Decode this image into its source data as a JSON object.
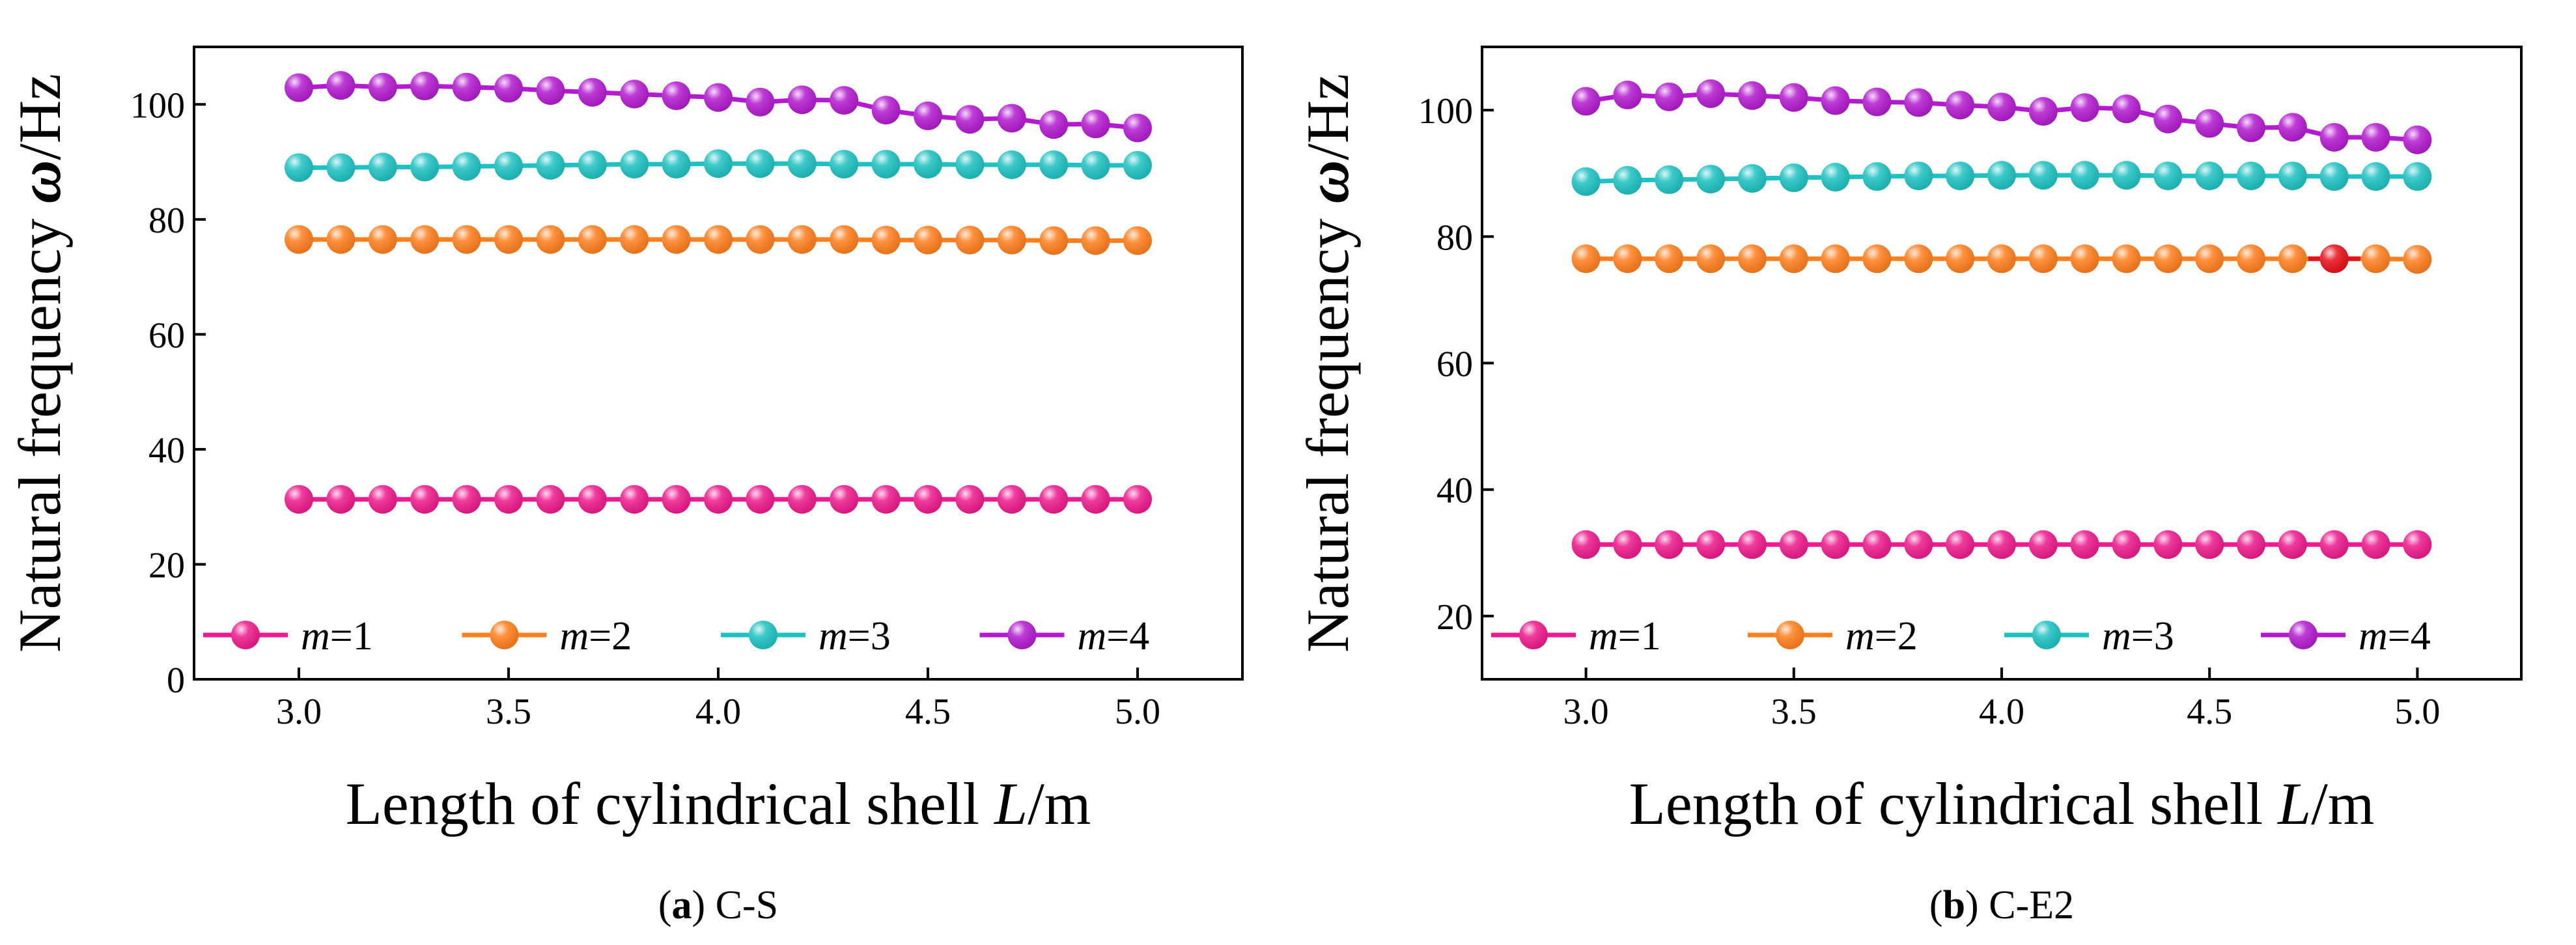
{
  "chart_data": [
    {
      "type": "line",
      "caption_letter": "a",
      "caption_rest": " C-S",
      "xlabel_main": "Length of cylindrical shell ",
      "xlabel_var": "L",
      "xlabel_unit": "/m",
      "ylabel_main": "Natural frequency ",
      "ylabel_var": "ω",
      "ylabel_unit": "/Hz",
      "xlim": [
        2.75,
        5.25
      ],
      "ylim": [
        0,
        110
      ],
      "xticks": [
        3.0,
        3.5,
        4.0,
        4.5,
        5.0
      ],
      "xtick_labels": [
        "3.0",
        "3.5",
        "4.0",
        "4.5",
        "5.0"
      ],
      "yticks": [
        0,
        20,
        40,
        60,
        80,
        100
      ],
      "ytick_labels": [
        "0",
        "20",
        "40",
        "60",
        "80",
        "100"
      ],
      "x": [
        3.0,
        3.1,
        3.2,
        3.3,
        3.4,
        3.5,
        3.6,
        3.7,
        3.8,
        3.9,
        4.0,
        4.1,
        4.2,
        4.3,
        4.4,
        4.5,
        4.6,
        4.7,
        4.8,
        4.9,
        5.0
      ],
      "series": [
        {
          "name": "m=1",
          "color": "#ee1a8e",
          "values": [
            31.3,
            31.3,
            31.3,
            31.3,
            31.3,
            31.3,
            31.3,
            31.3,
            31.3,
            31.3,
            31.3,
            31.3,
            31.3,
            31.3,
            31.3,
            31.3,
            31.3,
            31.3,
            31.3,
            31.3,
            31.3
          ]
        },
        {
          "name": "m=2",
          "color": "#ff7f1e",
          "values": [
            76.5,
            76.5,
            76.5,
            76.5,
            76.5,
            76.5,
            76.5,
            76.5,
            76.5,
            76.5,
            76.5,
            76.5,
            76.5,
            76.5,
            76.4,
            76.4,
            76.4,
            76.4,
            76.3,
            76.3,
            76.3
          ]
        },
        {
          "name": "m=3",
          "color": "#1fc2c2",
          "values": [
            89.0,
            89.0,
            89.1,
            89.1,
            89.2,
            89.3,
            89.4,
            89.5,
            89.6,
            89.6,
            89.7,
            89.7,
            89.7,
            89.6,
            89.6,
            89.6,
            89.5,
            89.5,
            89.5,
            89.4,
            89.4
          ]
        },
        {
          "name": "m=4",
          "color": "#b41bd0",
          "values": [
            102.9,
            103.3,
            103.0,
            103.2,
            103.0,
            102.8,
            102.4,
            102.1,
            101.8,
            101.5,
            101.2,
            100.4,
            100.8,
            100.7,
            99.0,
            98.0,
            97.4,
            97.6,
            96.5,
            96.6,
            95.9
          ]
        }
      ],
      "legend": {
        "prefix": "m",
        "labels": [
          "=1",
          "=2",
          "=3",
          "=4"
        ],
        "location": "lower"
      }
    },
    {
      "type": "line",
      "caption_letter": "b",
      "caption_rest": " C-E2",
      "xlabel_main": "Length of cylindrical shell ",
      "xlabel_var": "L",
      "xlabel_unit": "/m",
      "ylabel_main": "Natural frequency ",
      "ylabel_var": "ω",
      "ylabel_unit": "/Hz",
      "xlim": [
        2.75,
        5.25
      ],
      "ylim": [
        10,
        110
      ],
      "xticks": [
        3.0,
        3.5,
        4.0,
        4.5,
        5.0
      ],
      "xtick_labels": [
        "3.0",
        "3.5",
        "4.0",
        "4.5",
        "5.0"
      ],
      "yticks": [
        20,
        40,
        60,
        80,
        100
      ],
      "ytick_labels": [
        "20",
        "40",
        "60",
        "80",
        "100"
      ],
      "x": [
        3.0,
        3.1,
        3.2,
        3.3,
        3.4,
        3.5,
        3.6,
        3.7,
        3.8,
        3.9,
        4.0,
        4.1,
        4.2,
        4.3,
        4.4,
        4.5,
        4.6,
        4.7,
        4.8,
        4.9,
        5.0
      ],
      "series": [
        {
          "name": "m=1",
          "color": "#ee1a8e",
          "values": [
            31.3,
            31.3,
            31.3,
            31.3,
            31.3,
            31.3,
            31.3,
            31.3,
            31.3,
            31.3,
            31.3,
            31.3,
            31.3,
            31.3,
            31.3,
            31.3,
            31.3,
            31.3,
            31.3,
            31.3,
            31.3
          ]
        },
        {
          "name": "m=2",
          "color": "#ff7f1e",
          "values": [
            76.5,
            76.5,
            76.5,
            76.5,
            76.5,
            76.5,
            76.5,
            76.5,
            76.5,
            76.5,
            76.5,
            76.5,
            76.5,
            76.5,
            76.5,
            76.5,
            76.5,
            76.5,
            76.5,
            76.5,
            76.4
          ],
          "highlight_index": 18,
          "highlight_color": "#e8101a"
        },
        {
          "name": "m=3",
          "color": "#1fc2c2",
          "values": [
            88.7,
            88.9,
            89.0,
            89.1,
            89.2,
            89.3,
            89.4,
            89.5,
            89.6,
            89.6,
            89.7,
            89.7,
            89.7,
            89.7,
            89.6,
            89.6,
            89.6,
            89.6,
            89.5,
            89.5,
            89.5
          ]
        },
        {
          "name": "m=4",
          "color": "#b41bd0",
          "values": [
            101.4,
            102.4,
            102.1,
            102.6,
            102.3,
            102.0,
            101.5,
            101.3,
            101.2,
            100.8,
            100.5,
            99.8,
            100.4,
            100.2,
            98.6,
            97.9,
            97.2,
            97.3,
            95.7,
            95.7,
            95.3
          ]
        }
      ],
      "legend": {
        "prefix": "m",
        "labels": [
          "=1",
          "=2",
          "=3",
          "=4"
        ],
        "location": "lower"
      }
    }
  ]
}
